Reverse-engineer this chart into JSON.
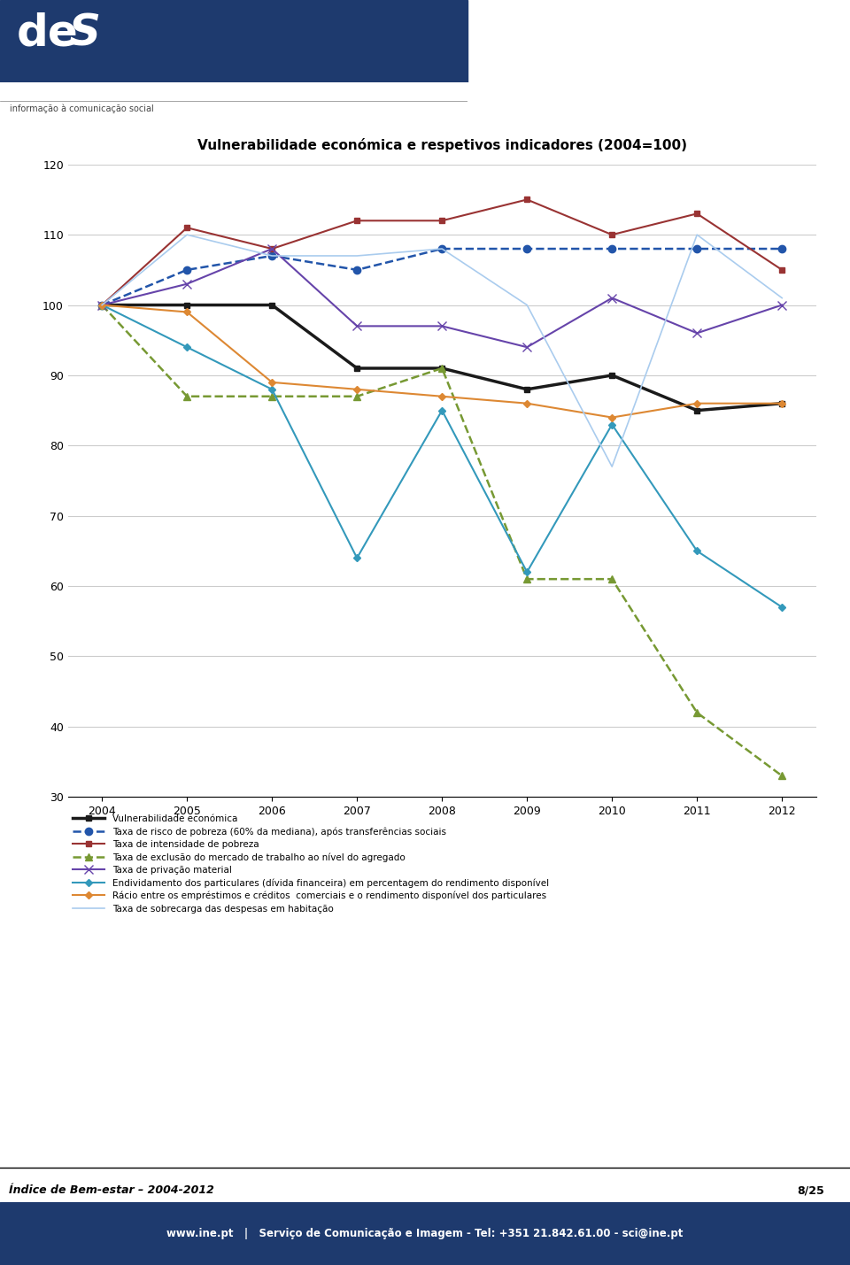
{
  "title": "Vulnerabilidade económica e respetivos indicadores (2004=100)",
  "years": [
    2004,
    2005,
    2006,
    2007,
    2008,
    2009,
    2010,
    2011,
    2012
  ],
  "series": [
    {
      "name": "Vulnerabilidade económica",
      "color": "#1a1a1a",
      "linestyle": "-",
      "marker": "s",
      "markersize": 4,
      "linewidth": 2.5,
      "markerfacecolor": "#1a1a1a",
      "values": [
        100,
        100,
        100,
        91,
        91,
        88,
        90,
        85,
        86
      ]
    },
    {
      "name": "Taxa de risco de pobreza (60% da mediana), após transferências sociais",
      "color": "#2255aa",
      "linestyle": "--",
      "marker": "o",
      "markersize": 6,
      "linewidth": 1.8,
      "markerfacecolor": "#2255aa",
      "values": [
        100,
        105,
        107,
        105,
        108,
        108,
        108,
        108,
        108
      ]
    },
    {
      "name": "Taxa de intensidade de pobreza",
      "color": "#993333",
      "linestyle": "-",
      "marker": "s",
      "markersize": 5,
      "linewidth": 1.5,
      "markerfacecolor": "#993333",
      "values": [
        100,
        111,
        108,
        112,
        112,
        115,
        110,
        113,
        105
      ]
    },
    {
      "name": "Taxa de exclusão do mercado de trabalho ao nível do agregado",
      "color": "#779933",
      "linestyle": "--",
      "marker": "^",
      "markersize": 6,
      "linewidth": 1.8,
      "markerfacecolor": "#779933",
      "values": [
        100,
        87,
        87,
        87,
        91,
        61,
        61,
        42,
        33
      ]
    },
    {
      "name": "Taxa de privação material",
      "color": "#6644aa",
      "linestyle": "-",
      "marker": "x",
      "markersize": 7,
      "linewidth": 1.5,
      "markerfacecolor": "#6644aa",
      "values": [
        100,
        103,
        108,
        97,
        97,
        94,
        101,
        96,
        100
      ]
    },
    {
      "name": "Endividamento dos particulares (dívida financeira) em percentagem do rendimento disponível",
      "color": "#3399bb",
      "linestyle": "-",
      "marker": "D",
      "markersize": 4,
      "linewidth": 1.5,
      "markerfacecolor": "#3399bb",
      "values": [
        100,
        94,
        88,
        64,
        85,
        62,
        83,
        65,
        57
      ]
    },
    {
      "name": "Rácio entre os empréstimos e créditos  comerciais e o rendimento disponível dos particulares",
      "color": "#dd8833",
      "linestyle": "-",
      "marker": "D",
      "markersize": 4,
      "linewidth": 1.5,
      "markerfacecolor": "#dd8833",
      "values": [
        100,
        99,
        89,
        88,
        87,
        86,
        84,
        86,
        86
      ]
    },
    {
      "name": "Taxa de sobrecarga das despesas em habitação",
      "color": "#aaccee",
      "linestyle": "-",
      "marker": null,
      "markersize": 3,
      "linewidth": 1.2,
      "markerfacecolor": "#aaccee",
      "values": [
        100,
        110,
        107,
        107,
        108,
        100,
        77,
        110,
        101
      ]
    }
  ],
  "ylim": [
    30,
    120
  ],
  "yticks": [
    30,
    40,
    50,
    60,
    70,
    80,
    90,
    100,
    110,
    120
  ],
  "header_color_left": "#1e3a6e",
  "header_color_right": "#1e3a6e",
  "footer_text": "www.ine.pt   |   Serviço de Comunicação e Imagem - Tel: +351 21.842.61.00 - sci@ine.pt",
  "bottom_left_text": "Índice de Bem-estar – 2004-2012",
  "bottom_right_text": "8/25",
  "legend_fontsize": 7.5,
  "title_fontsize": 11,
  "figsize": [
    9.6,
    14.29
  ],
  "dpi": 100
}
